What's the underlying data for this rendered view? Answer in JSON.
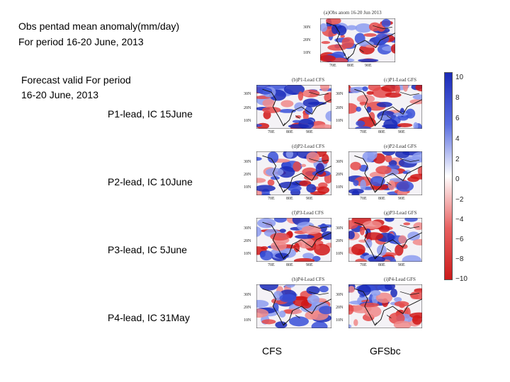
{
  "header": {
    "line1": "Obs pentad mean anomaly(mm/day)",
    "line2": "For period 16-20 June, 2013"
  },
  "forecast": {
    "line1": "Forecast valid For period",
    "line2": "16-20 June, 2013"
  },
  "rows": [
    {
      "label": "P1-lead, IC 15June"
    },
    {
      "label": "P2-lead, IC 10June"
    },
    {
      "label": "P3-lead, IC 5June"
    },
    {
      "label": "P4-lead, IC 31May"
    }
  ],
  "columns": {
    "cfs": "CFS",
    "gfs": "GFSbc"
  },
  "obs_panel": {
    "title": "(a)Obs anom 16-20 Jun 2013"
  },
  "panels": [
    {
      "title": "(b)P1-Lead CFS"
    },
    {
      "title": "(c)P1-Lead GFS"
    },
    {
      "title": "(d)P2-Lead CFS"
    },
    {
      "title": "(e)P2-Lead GFS"
    },
    {
      "title": "(f)P3-Lead CFS"
    },
    {
      "title": "(g)P3-Lead GFS"
    },
    {
      "title": "(h)P4-Lead CFS"
    },
    {
      "title": "(i)P4-Lead GFS"
    }
  ],
  "axes": {
    "lat": [
      "30N",
      "20N",
      "10N"
    ],
    "lon": [
      "70E",
      "80E",
      "90E"
    ]
  },
  "colorbar": {
    "labels": [
      "10",
      "8",
      "6",
      "4",
      "2",
      "0",
      "−2",
      "−4",
      "−6",
      "−8",
      "−10"
    ],
    "colors": {
      "pos": "#1a2ab8",
      "neg": "#cc1a1a",
      "mid": "#ffffff"
    }
  }
}
